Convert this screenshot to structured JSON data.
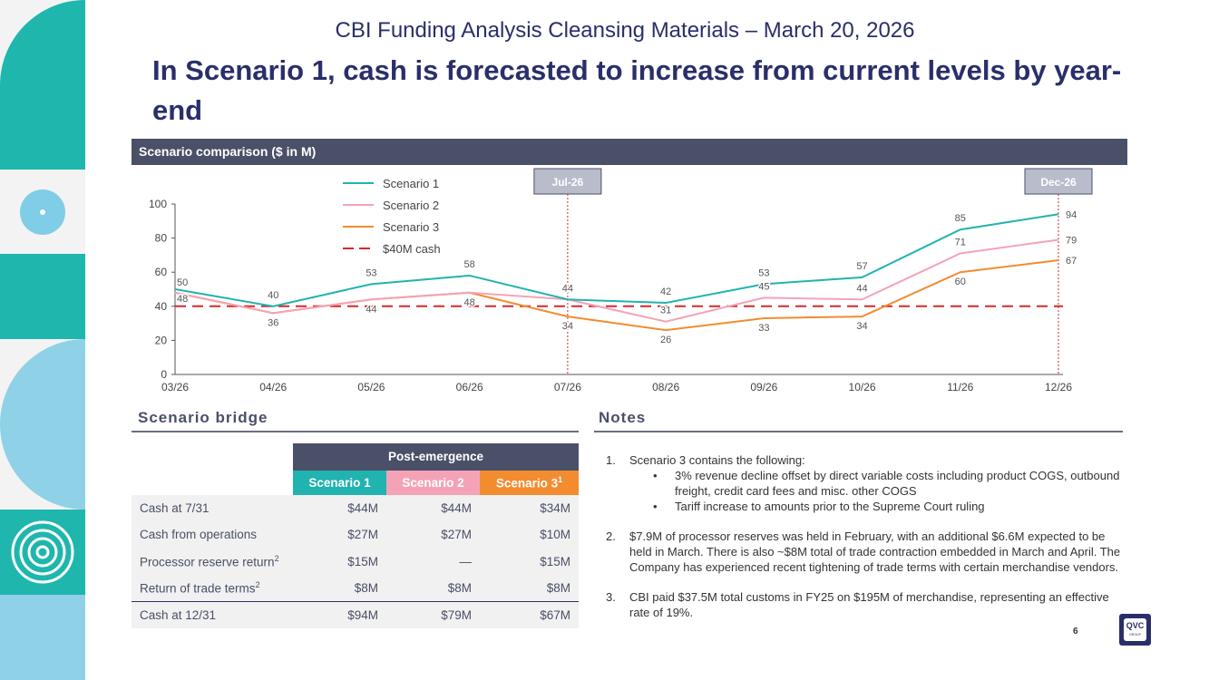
{
  "header": {
    "subtitle": "CBI Funding Analysis Cleansing Materials – March 20, 2026",
    "headline": "In Scenario 1, cash is forecasted to increase from current levels by year-end"
  },
  "colors": {
    "navy": "#2a2f6a",
    "scenario1": "#20b3b0",
    "scenario2": "#f4a3b6",
    "scenario3": "#f28c2f",
    "threshold": "#d62828",
    "header_bg": "#4a5068"
  },
  "chart_panel": {
    "title": "Scenario comparison ($ in M)"
  },
  "chart_data": {
    "type": "line",
    "title": "Scenario comparison ($ in M)",
    "categories": [
      "03/26",
      "04/26",
      "05/26",
      "06/26",
      "07/26",
      "08/26",
      "09/26",
      "10/26",
      "11/26",
      "12/26"
    ],
    "ylim": [
      0,
      100
    ],
    "yticks": [
      0,
      20,
      40,
      60,
      80,
      100
    ],
    "series": [
      {
        "name": "Scenario 1",
        "color": "#20b3b0",
        "values": [
          50,
          40,
          53,
          58,
          44,
          42,
          53,
          57,
          85,
          94
        ],
        "labels": [
          "50",
          "40",
          "53",
          "58",
          "44",
          "42",
          "53",
          "57",
          "85",
          "94"
        ]
      },
      {
        "name": "Scenario 2",
        "color": "#f4a3b6",
        "values": [
          48,
          36,
          44,
          48,
          44,
          31,
          45,
          44,
          71,
          79
        ],
        "labels": [
          "",
          "",
          "",
          "",
          "",
          "31",
          "45",
          "44",
          "71",
          "79"
        ]
      },
      {
        "name": "Scenario 3",
        "color": "#f28c2f",
        "values": [
          48,
          36,
          44,
          48,
          34,
          26,
          33,
          34,
          60,
          67
        ],
        "labels": [
          "48",
          "36",
          "44",
          "48",
          "34",
          "26",
          "33",
          "34",
          "60",
          "67"
        ]
      }
    ],
    "reference_line": {
      "name": "$40M cash",
      "value": 40,
      "color": "#d62828"
    },
    "markers": [
      {
        "label": "Jul-26",
        "category": "07/26"
      },
      {
        "label": "Dec-26",
        "category": "12/26"
      }
    ],
    "legend": [
      "Scenario 1",
      "Scenario 2",
      "Scenario 3",
      "$40M cash"
    ],
    "legend_position": "top-left"
  },
  "bridge": {
    "title": "Scenario bridge",
    "group_header": "Post-emergence",
    "columns": [
      "Scenario 1",
      "Scenario 2",
      "Scenario 3"
    ],
    "col3_sup": "1",
    "rows": [
      {
        "label": "Cash at 7/31",
        "sup": "",
        "values": [
          "$44M",
          "$44M",
          "$34M"
        ]
      },
      {
        "label": "Cash from operations",
        "sup": "",
        "values": [
          "$27M",
          "$27M",
          "$10M"
        ]
      },
      {
        "label": "Processor reserve return",
        "sup": "2",
        "values": [
          "$15M",
          "—",
          "$15M"
        ]
      },
      {
        "label": "Return of trade terms",
        "sup": "2",
        "values": [
          "$8M",
          "$8M",
          "$8M"
        ]
      },
      {
        "label": "Cash at 12/31",
        "sup": "",
        "values": [
          "$94M",
          "$79M",
          "$67M"
        ]
      }
    ]
  },
  "notes": {
    "title": "Notes",
    "items": [
      {
        "num": "1.",
        "text": "Scenario 3 contains the following:",
        "bullets": [
          "3% revenue decline offset by direct variable costs including product COGS, outbound freight, credit card fees and misc. other COGS",
          "Tariff increase to amounts prior to the Supreme Court ruling"
        ]
      },
      {
        "num": "2.",
        "text": "$7.9M of processor reserves was held in February, with an additional $6.6M expected to be held in March. There is also ~$8M total of trade contraction embedded in March and April. The Company has experienced recent tightening of trade terms with certain merchandise vendors.",
        "bullets": []
      },
      {
        "num": "3.",
        "text": "CBI paid $37.5M total customs in FY25 on $195M of merchandise, representing an effective rate of 19%.",
        "bullets": []
      }
    ]
  },
  "footer": {
    "page_number": "6",
    "logo_text": "QVC",
    "logo_subtext": "GROUP"
  }
}
